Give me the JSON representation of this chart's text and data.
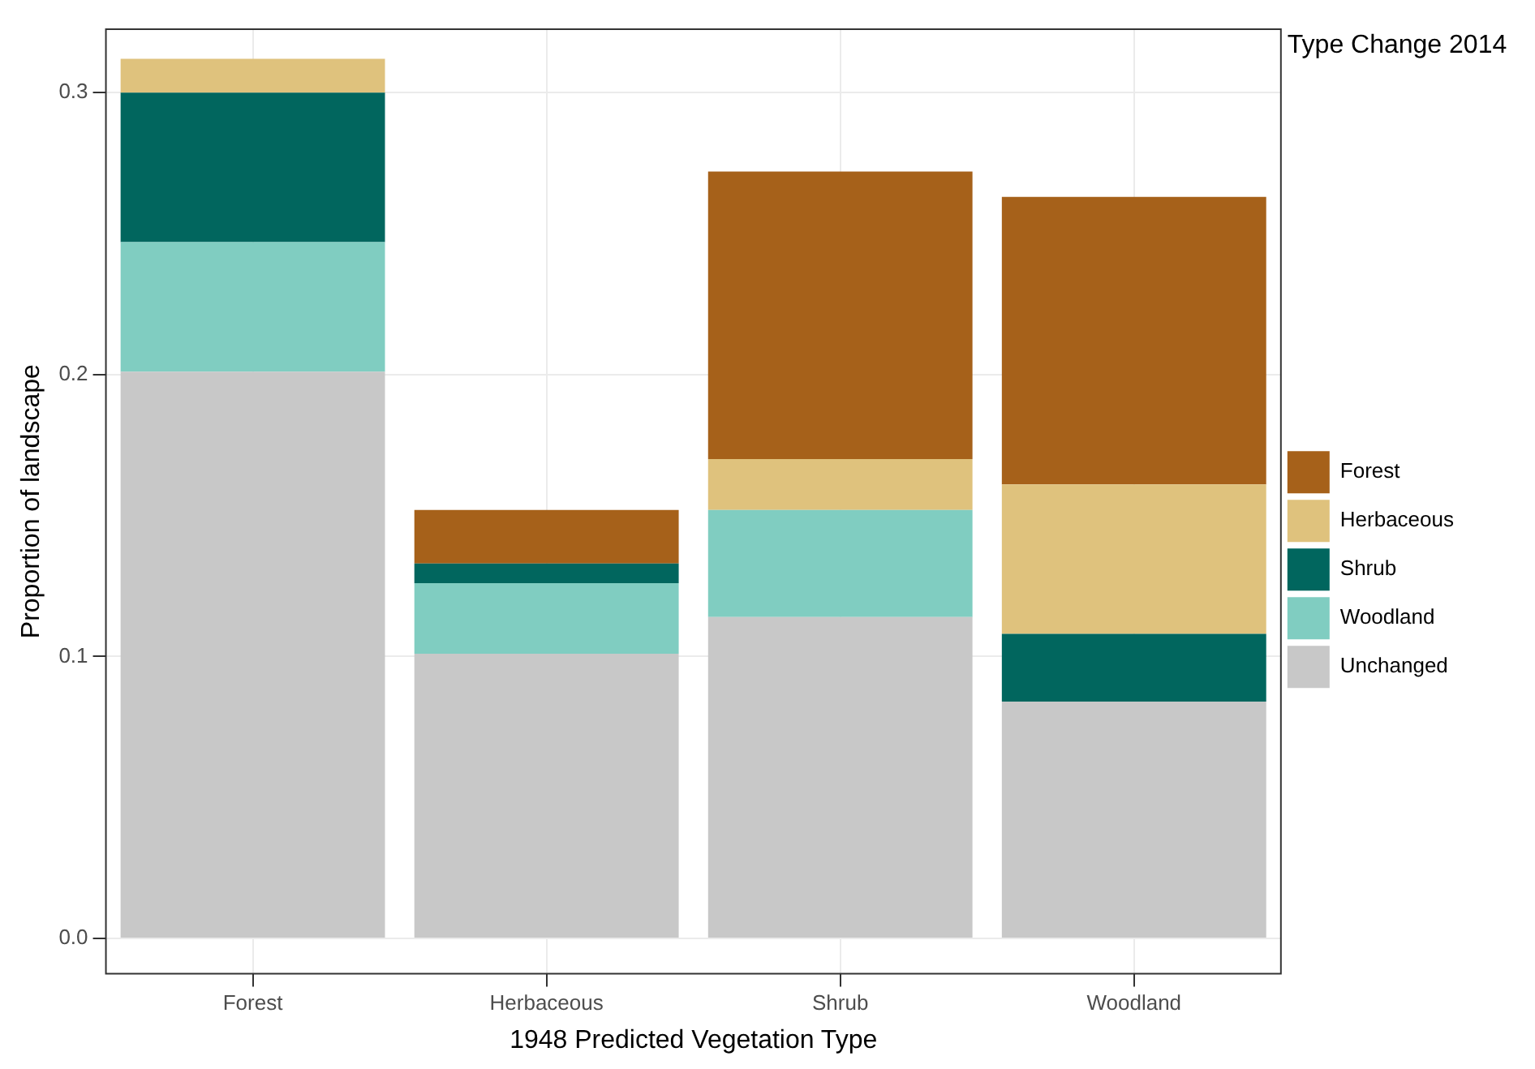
{
  "chart_data": {
    "type": "bar",
    "stacked": true,
    "xlabel": "1948 Predicted Vegetation Type",
    "ylabel": "Proportion of landscape",
    "legend_title": "Type Change 2014",
    "categories": [
      "Forest",
      "Herbaceous",
      "Shrub",
      "Woodland"
    ],
    "series": [
      {
        "name": "Unchanged",
        "color": "#c8c8c8",
        "values": [
          0.201,
          0.101,
          0.114,
          0.084
        ]
      },
      {
        "name": "Woodland",
        "color": "#80cdc1",
        "values": [
          0.046,
          0.025,
          0.038,
          0
        ]
      },
      {
        "name": "Shrub",
        "color": "#01665e",
        "values": [
          0.053,
          0.007,
          0,
          0.024
        ]
      },
      {
        "name": "Herbaceous",
        "color": "#dfc27d",
        "values": [
          0.012,
          0,
          0.018,
          0.053
        ]
      },
      {
        "name": "Forest",
        "color": "#a6611a",
        "values": [
          0,
          0.019,
          0.102,
          0.102
        ]
      }
    ],
    "ylim": [
      -0.0125,
      0.3225
    ],
    "yticks": [
      {
        "value": 0,
        "label": "0.0"
      },
      0.1,
      0.2,
      0.3
    ],
    "grid": true,
    "legend": "right"
  }
}
